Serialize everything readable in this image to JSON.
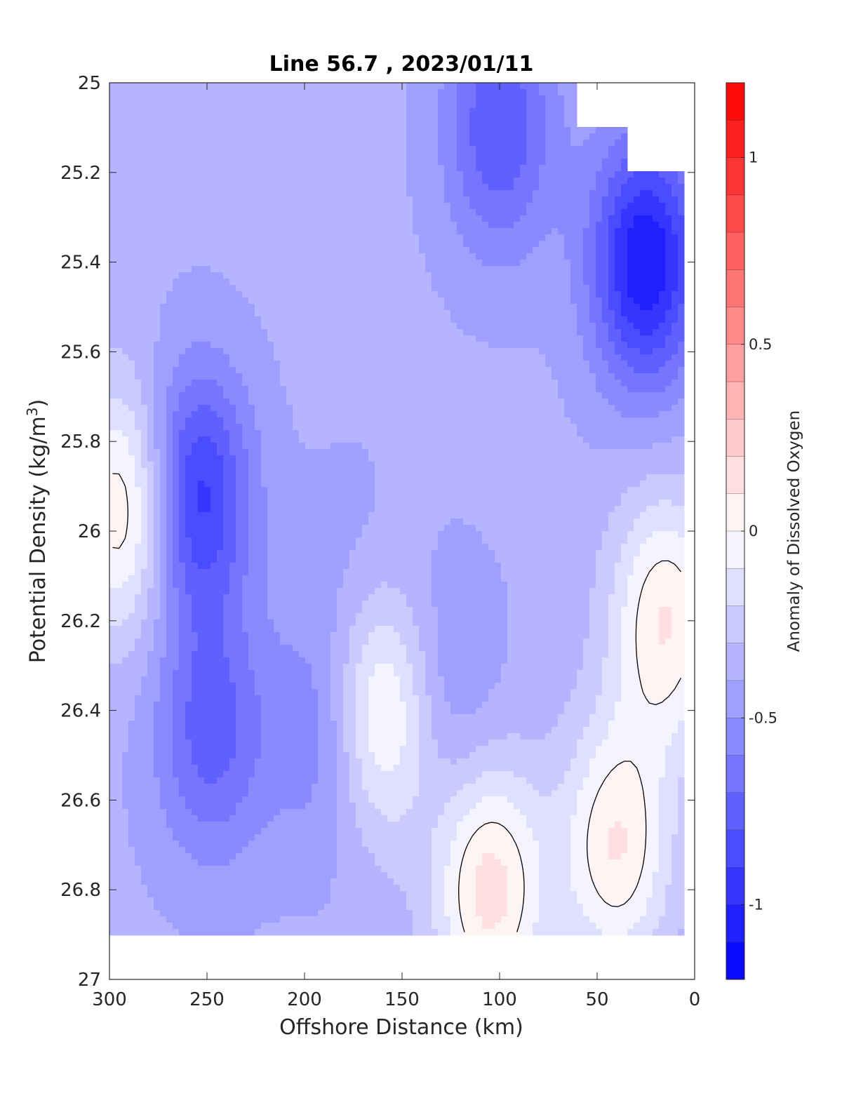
{
  "chart_data": {
    "type": "heatmap",
    "subtype": "filled-contour",
    "title": "Line 56.7 , 2023/01/11",
    "xlabel": "Offshore Distance (km)",
    "ylabel": "Potential Density (kg/m3)",
    "ylabel_parts": {
      "main": "Potential Density (kg/m",
      "sup": "3",
      "end": ")"
    },
    "x_reversed": true,
    "y_reversed": true,
    "xlim": [
      300,
      0
    ],
    "ylim": [
      25,
      27
    ],
    "xticks": [
      300,
      250,
      200,
      150,
      100,
      50,
      0
    ],
    "xtick_labels": [
      "300",
      "250",
      "200",
      "150",
      "100",
      "50",
      "0"
    ],
    "yticks": [
      25,
      25.2,
      25.4,
      25.6,
      25.8,
      26,
      26.2,
      26.4,
      26.6,
      26.8,
      27
    ],
    "ytick_labels": [
      "25",
      "25.2",
      "25.4",
      "25.6",
      "25.8",
      "26",
      "26.2",
      "26.4",
      "26.6",
      "26.8",
      "27"
    ],
    "grid": false,
    "legend": "none",
    "data_extent": {
      "x": [
        300,
        5
      ],
      "y_bottom": 26.9,
      "y_top_by_x": [
        [
          300,
          25.0
        ],
        [
          65,
          25.0
        ],
        [
          60,
          25.1
        ],
        [
          40,
          25.1
        ],
        [
          35,
          25.2
        ],
        [
          12,
          25.2
        ]
      ]
    },
    "colorbar": {
      "label": "Anomaly of Dissolved Oxygen",
      "range": [
        -1.2,
        1.2
      ],
      "ticks": [
        1,
        0.5,
        0,
        -0.5,
        -1
      ],
      "tick_labels": [
        "1",
        "0.5",
        "0",
        "-0.5",
        "-1"
      ],
      "levels_step": 0.1,
      "colormap": "blue-white-red",
      "color_min": "#0000ff",
      "color_zero": "#ffffff",
      "color_max": "#ff0000"
    },
    "zero_contour_color": "#000000",
    "features": [
      {
        "x": 257,
        "y": 25.92,
        "value": -1.0
      },
      {
        "x": 248,
        "y": 26.45,
        "value": -0.75
      },
      {
        "x": 25,
        "y": 25.4,
        "value": -1.1
      },
      {
        "x": 100,
        "y": 25.1,
        "value": -0.8
      },
      {
        "x": 160,
        "y": 26.4,
        "value": 0.1
      },
      {
        "x": 290,
        "y": 25.95,
        "value": 0.15
      },
      {
        "x": 105,
        "y": 26.8,
        "value": 0.15
      },
      {
        "x": 40,
        "y": 26.7,
        "value": 0.1
      },
      {
        "x": 15,
        "y": 26.2,
        "value": 0.1
      },
      {
        "x": 190,
        "y": 26.45,
        "value": -0.6
      },
      {
        "x": 130,
        "y": 26.35,
        "value": -0.55
      },
      {
        "x": 175,
        "y": 26.1,
        "value": -0.45
      }
    ]
  }
}
